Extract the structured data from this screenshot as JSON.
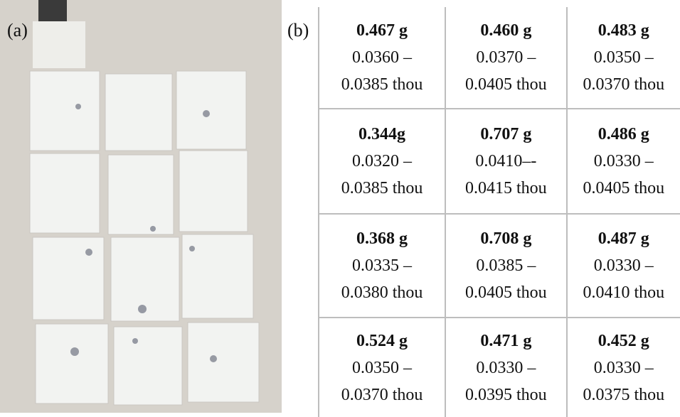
{
  "labels": {
    "a": "(a)",
    "b": "(b)"
  },
  "table": {
    "rows": [
      [
        {
          "weight": "0.467 g",
          "line1": "0.0360 –",
          "line2": "0.0385 thou"
        },
        {
          "weight": "0.460 g",
          "line1": "0.0370 –",
          "line2": "0.0405 thou"
        },
        {
          "weight": "0.483 g",
          "line1": "0.0350 –",
          "line2": "0.0370 thou"
        }
      ],
      [
        {
          "weight": "0.344g",
          "line1": "0.0320 –",
          "line2": "0.0385 thou"
        },
        {
          "weight": "0.707 g",
          "line1": "0.0410–-",
          "line2": "0.0415 thou"
        },
        {
          "weight": "0.486 g",
          "line1": "0.0330 –",
          "line2": "0.0405 thou"
        }
      ],
      [
        {
          "weight": "0.368 g",
          "line1": "0.0335 –",
          "line2": "0.0380 thou"
        },
        {
          "weight": "0.708 g",
          "line1": "0.0385 –",
          "line2": "0.0405 thou"
        },
        {
          "weight": "0.487 g",
          "line1": "0.0330 –",
          "line2": "0.0410 thou"
        }
      ],
      [
        {
          "weight": "0.524 g",
          "line1": "0.0350 –",
          "line2": "0.0370 thou"
        },
        {
          "weight": "0.471 g",
          "line1": "0.0330 –",
          "line2": "0.0395 thou"
        },
        {
          "weight": "0.452 g",
          "line1": "0.0330 –",
          "line2": "0.0375 thou"
        }
      ]
    ]
  }
}
